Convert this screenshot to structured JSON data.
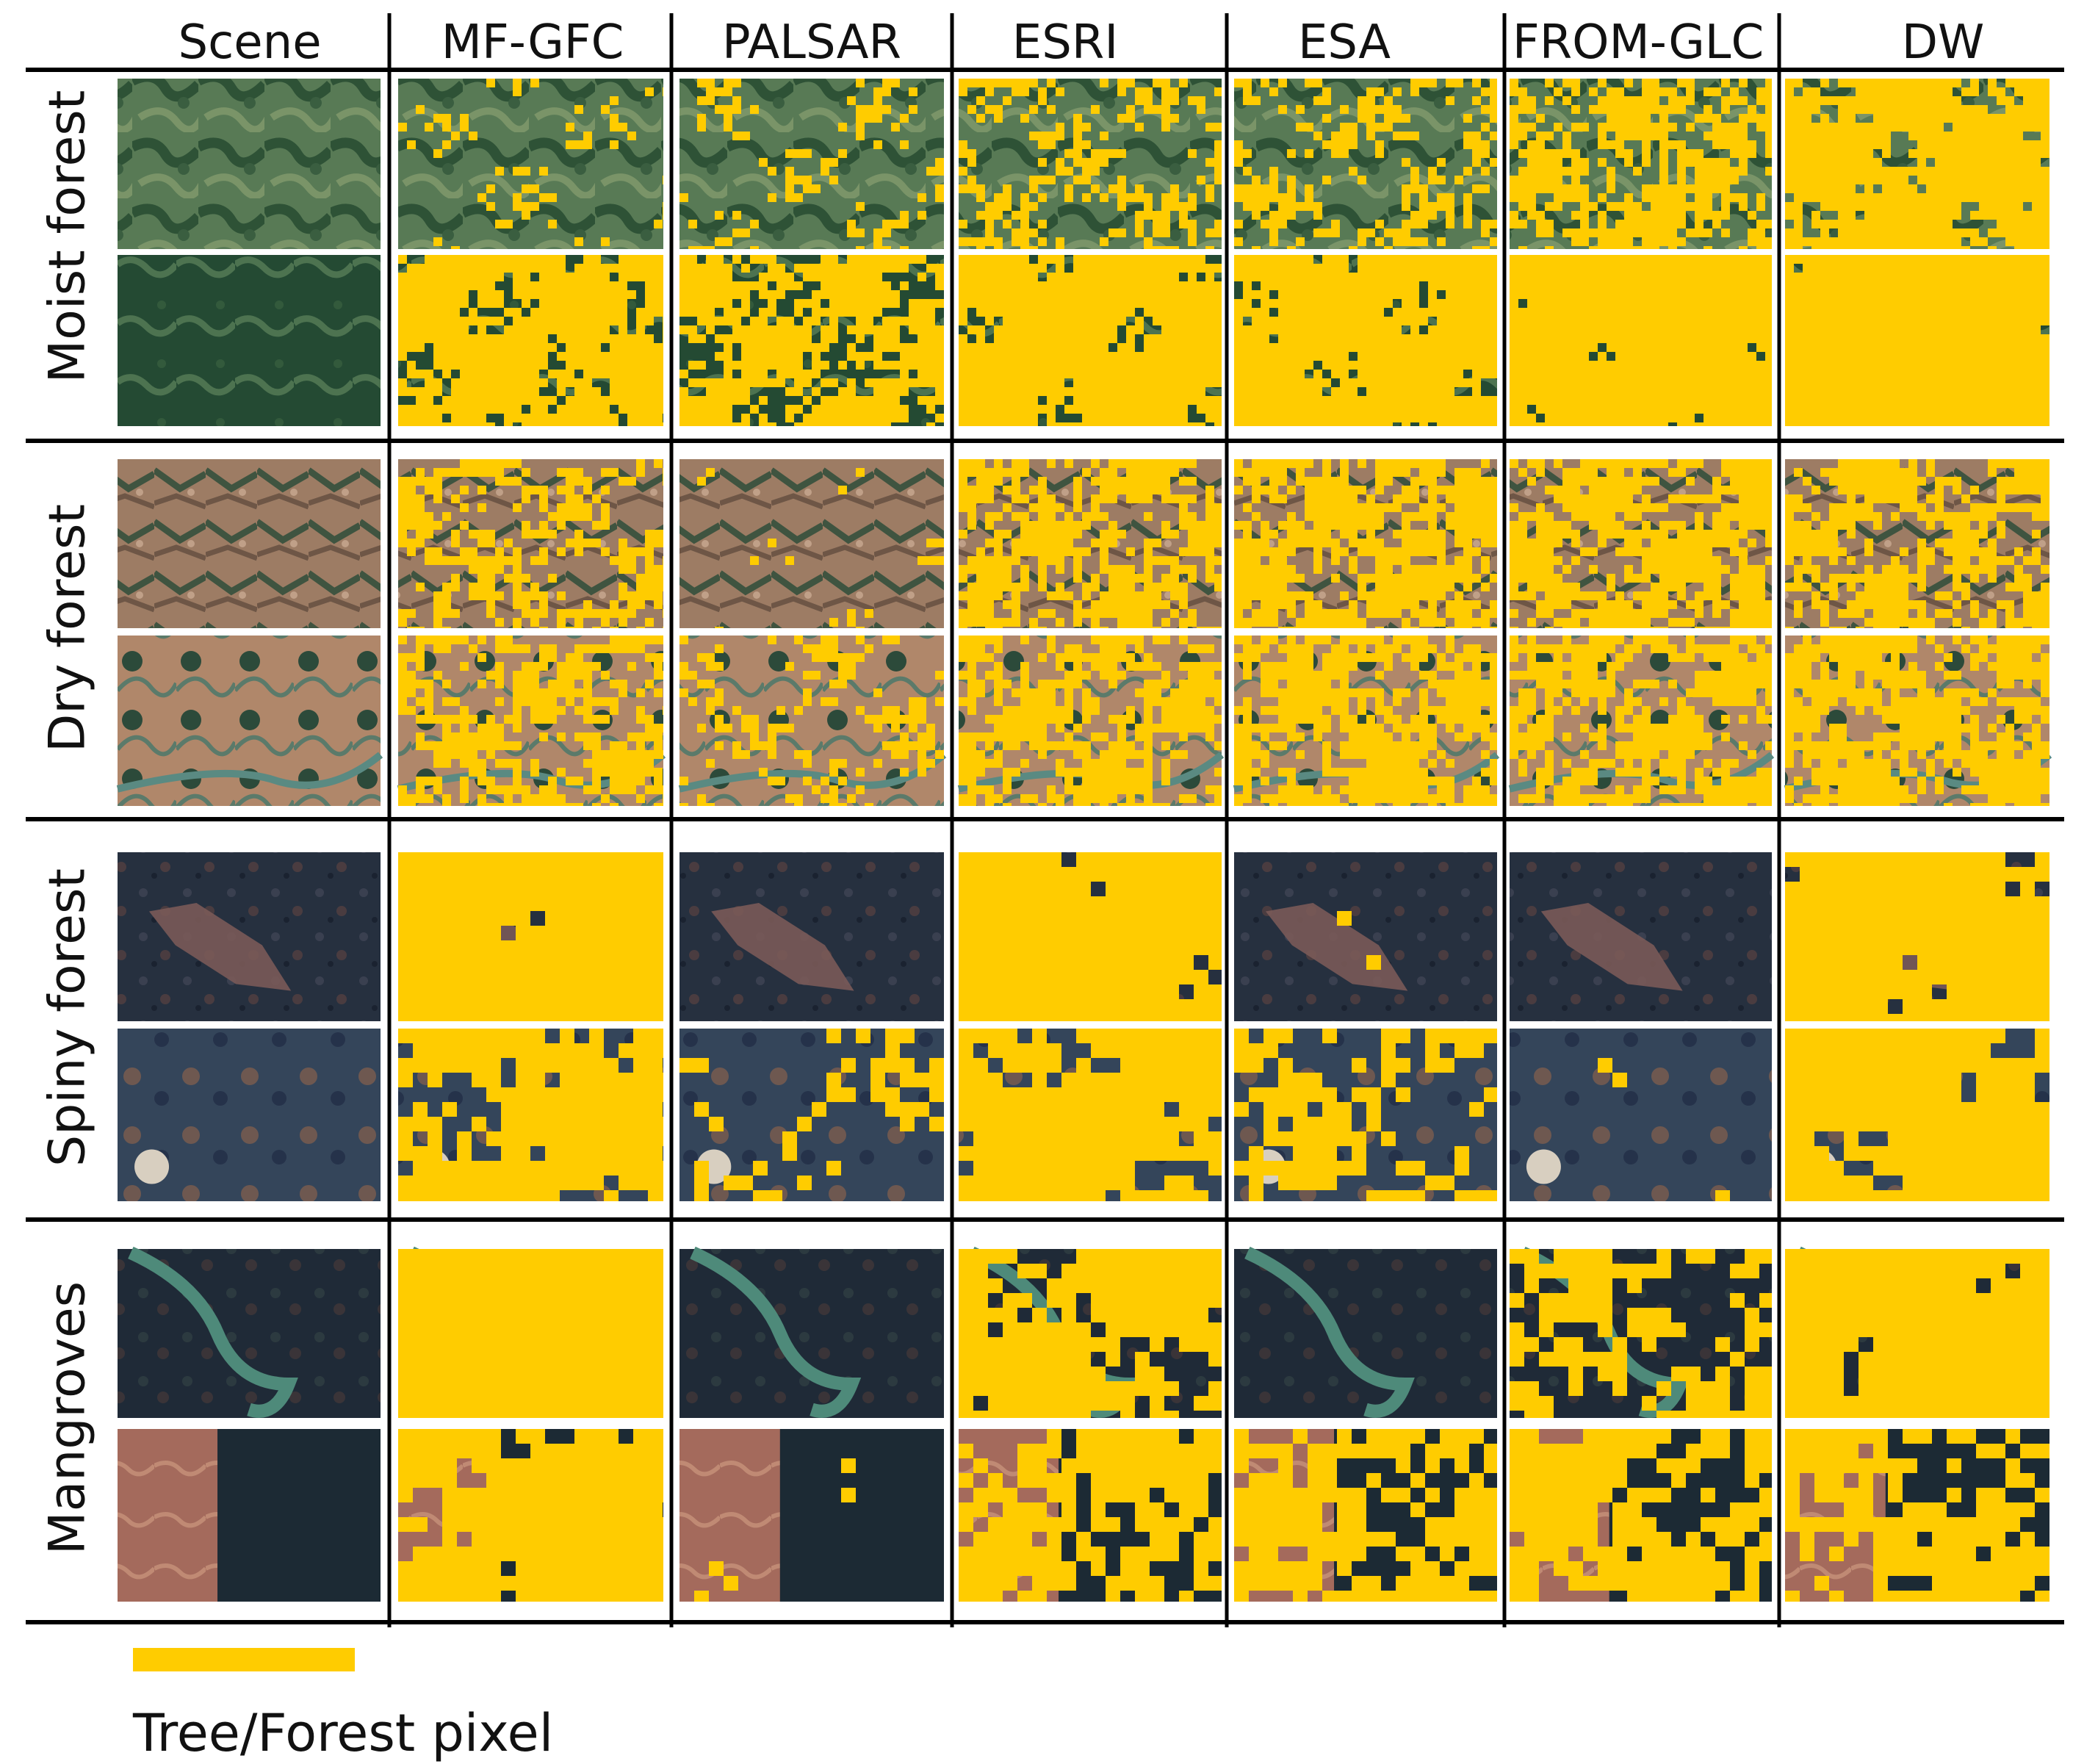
{
  "figure": {
    "columns": [
      "Scene",
      "MF-GFC",
      "PALSAR",
      "ESRI",
      "ESA",
      "FROM-GLC",
      "DW"
    ],
    "rows": [
      {
        "label": "Moist forest",
        "scene_kind": "moist"
      },
      {
        "label": "Dry forest",
        "scene_kind": "dry"
      },
      {
        "label": "Spiny forest",
        "scene_kind": "spiny"
      },
      {
        "label": "Mangroves",
        "scene_kind": "mangrove"
      }
    ],
    "forest_fraction": [
      [
        [
          0.25,
          0.72
        ],
        [
          0.3,
          0.62
        ],
        [
          0.4,
          0.82
        ],
        [
          0.4,
          0.8
        ],
        [
          0.55,
          0.9
        ],
        [
          0.75,
          0.97
        ]
      ],
      [
        [
          0.45,
          0.5
        ],
        [
          0.12,
          0.35
        ],
        [
          0.55,
          0.55
        ],
        [
          0.6,
          0.6
        ],
        [
          0.6,
          0.55
        ],
        [
          0.55,
          0.6
        ]
      ],
      [
        [
          0.92,
          0.7
        ],
        [
          0.0,
          0.3
        ],
        [
          0.85,
          0.72
        ],
        [
          0.12,
          0.45
        ],
        [
          0.0,
          0.12
        ],
        [
          0.88,
          0.78
        ]
      ],
      [
        [
          0.97,
          0.75
        ],
        [
          0.0,
          0.12
        ],
        [
          0.7,
          0.6
        ],
        [
          0.06,
          0.58
        ],
        [
          0.5,
          0.6
        ],
        [
          0.85,
          0.58
        ]
      ]
    ],
    "colors": {
      "forest_pixel": "#FFCC00",
      "grid_line": "#000000",
      "moist_scene": [
        "#2f5a3a",
        "#4f7a52",
        "#6b8a5e"
      ],
      "dry_scene": [
        "#8d6e58",
        "#3f5a44",
        "#b08a70"
      ],
      "spiny_scene": [
        "#1f2a3a",
        "#5a4a48",
        "#6e5850"
      ],
      "mangrove_scene": [
        "#1e2a38",
        "#3a6a5a",
        "#a0665a"
      ]
    }
  },
  "legend": {
    "label": "Tree/Forest pixel",
    "swatch_color": "#FFCC00"
  }
}
